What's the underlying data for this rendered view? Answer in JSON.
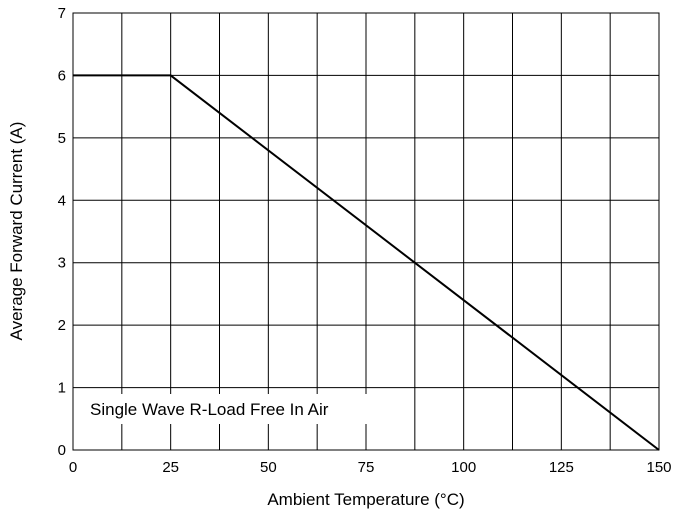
{
  "chart_data": {
    "type": "line",
    "title": "",
    "xlabel": "Ambient Temperature (°C)",
    "ylabel": "Average Forward Current (A)",
    "xlim": [
      0,
      150
    ],
    "ylim": [
      0,
      7
    ],
    "x_ticks": [
      0,
      25,
      50,
      75,
      100,
      125,
      150
    ],
    "x_tick_labels": [
      "0",
      "25",
      "50",
      "75",
      "100",
      "125",
      "150"
    ],
    "y_ticks": [
      0,
      1,
      2,
      3,
      4,
      5,
      6,
      7
    ],
    "y_tick_labels": [
      "0",
      "1",
      "2",
      "3",
      "4",
      "5",
      "6",
      "7"
    ],
    "x_minor_gridlines": [
      12.5,
      37.5,
      62.5,
      87.5,
      112.5,
      137.5
    ],
    "grid": true,
    "annotation": "Single Wave R-Load Free In Air",
    "series": [
      {
        "x": [
          0,
          25,
          150
        ],
        "y": [
          6,
          6,
          0
        ]
      }
    ],
    "colors": {
      "line": "#000000",
      "grid": "#000000",
      "background": "#ffffff"
    }
  }
}
